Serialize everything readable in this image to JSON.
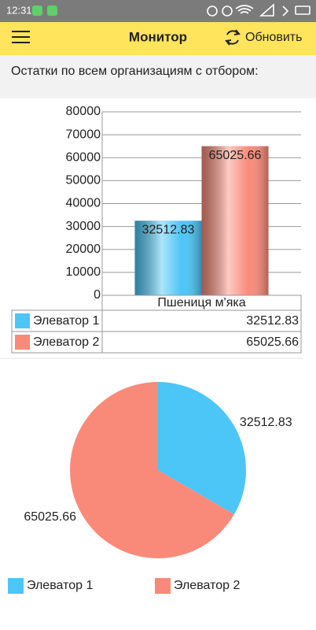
{
  "status_bar": {
    "time": "12:31"
  },
  "app_bar": {
    "title": "Монитор",
    "action": "Обновить"
  },
  "header": {
    "text": "Остатки по всем организациям с отбором:"
  },
  "chart_data": [
    {
      "type": "bar",
      "categories": [
        "Пшениця м'яка"
      ],
      "series": [
        {
          "name": "Элеватор 1",
          "color": "#4cc5f7",
          "values": [
            32512.83
          ]
        },
        {
          "name": "Элеватор 2",
          "color": "#f98a7a",
          "values": [
            65025.66
          ]
        }
      ],
      "ylim": [
        0,
        80000
      ],
      "yticks": [
        0,
        10000,
        20000,
        30000,
        40000,
        50000,
        60000,
        70000,
        80000
      ],
      "grid": true,
      "data_table": true
    },
    {
      "type": "pie",
      "categories": [
        "Элеватор 1",
        "Элеватор 2"
      ],
      "values": [
        32512.83,
        65025.66
      ],
      "colors": [
        "#4cc5f7",
        "#f98a7a"
      ],
      "legend": "bottom"
    }
  ]
}
